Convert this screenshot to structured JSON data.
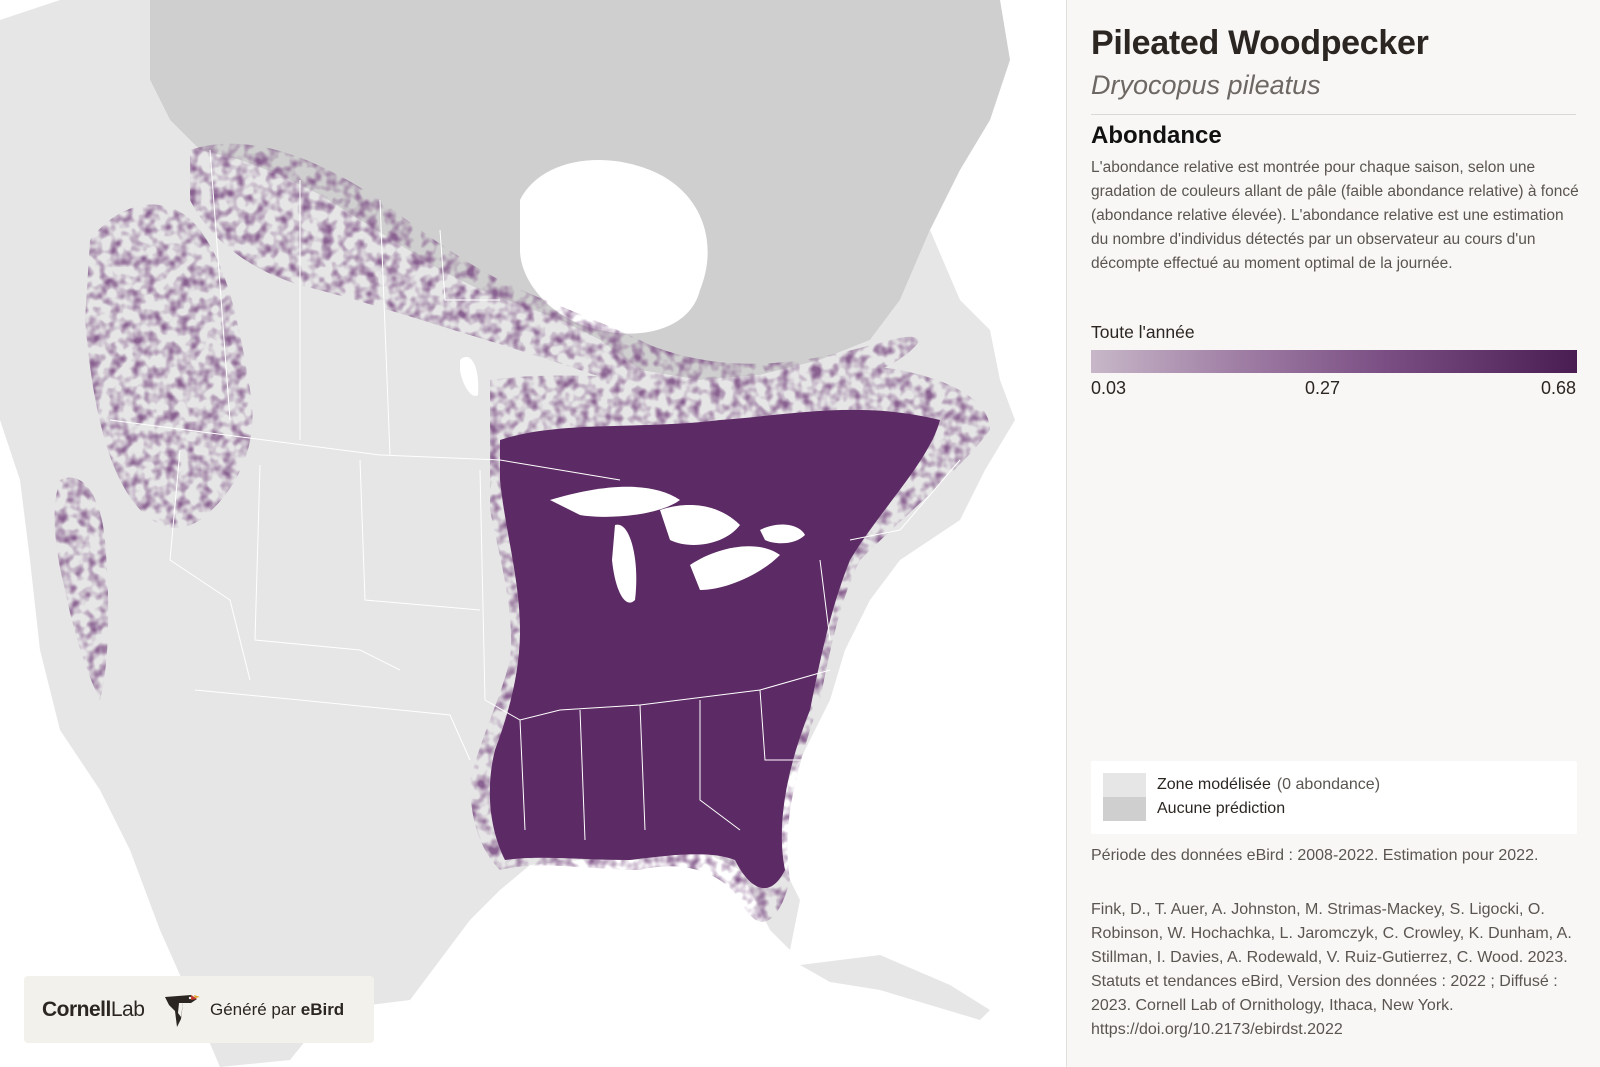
{
  "species": {
    "common_name": "Pileated Woodpecker",
    "scientific_name": "Dryocopus pileatus"
  },
  "abundance": {
    "heading": "Abondance",
    "description": "L'abondance relative est montrée pour chaque saison, selon une gradation de couleurs allant de pâle (faible abondance relative) à foncé (abondance relative élevée). L'abondance relative est une estimation du nombre d'individus détectés par un observateur au cours d'un décompte effectué au moment optimal de la journée."
  },
  "scale": {
    "season_label": "Toute l'année",
    "ticks": [
      "0.03",
      "0.27",
      "0.68"
    ],
    "colors": [
      "#c7b7c8",
      "#a07fa5",
      "#7b4f84",
      "#4a1d52"
    ]
  },
  "legend": {
    "items": [
      {
        "label": "Zone modélisée",
        "note": "(0 abondance)",
        "color": "#e6e6e6"
      },
      {
        "label": "Aucune prédiction",
        "note": "",
        "color": "#cfcfcf"
      }
    ]
  },
  "period_text": "Période des données eBird : 2008-2022. Estimation pour 2022.",
  "citation_text": "Fink, D., T. Auer, A. Johnston, M. Strimas-Mackey, S. Ligocki, O. Robinson, W. Hochachka, L. Jaromczyk, C. Crowley, K. Dunham, A. Stillman, I. Davies, A. Rodewald, V. Ruiz-Gutierrez, C. Wood. 2023. Statuts et tendances eBird, Version des données : 2022 ; Diffusé : 2023. Cornell Lab of Ornithology, Ithaca, New York. https://doi.org/10.2173/ebirdst.2022",
  "logo": {
    "cornell": "Cornell",
    "lab": "Lab",
    "generated_prefix": "Généré par",
    "generated_brand": "eBird"
  },
  "map_colors": {
    "ocean": "#ffffff",
    "modeled_zone": "#e6e6e6",
    "no_prediction": "#cfcfcf",
    "abundance_high": "#5c2a64",
    "abundance_mid": "#8a6291",
    "abundance_low": "#b8a3bb",
    "borders": "#ffffff"
  }
}
